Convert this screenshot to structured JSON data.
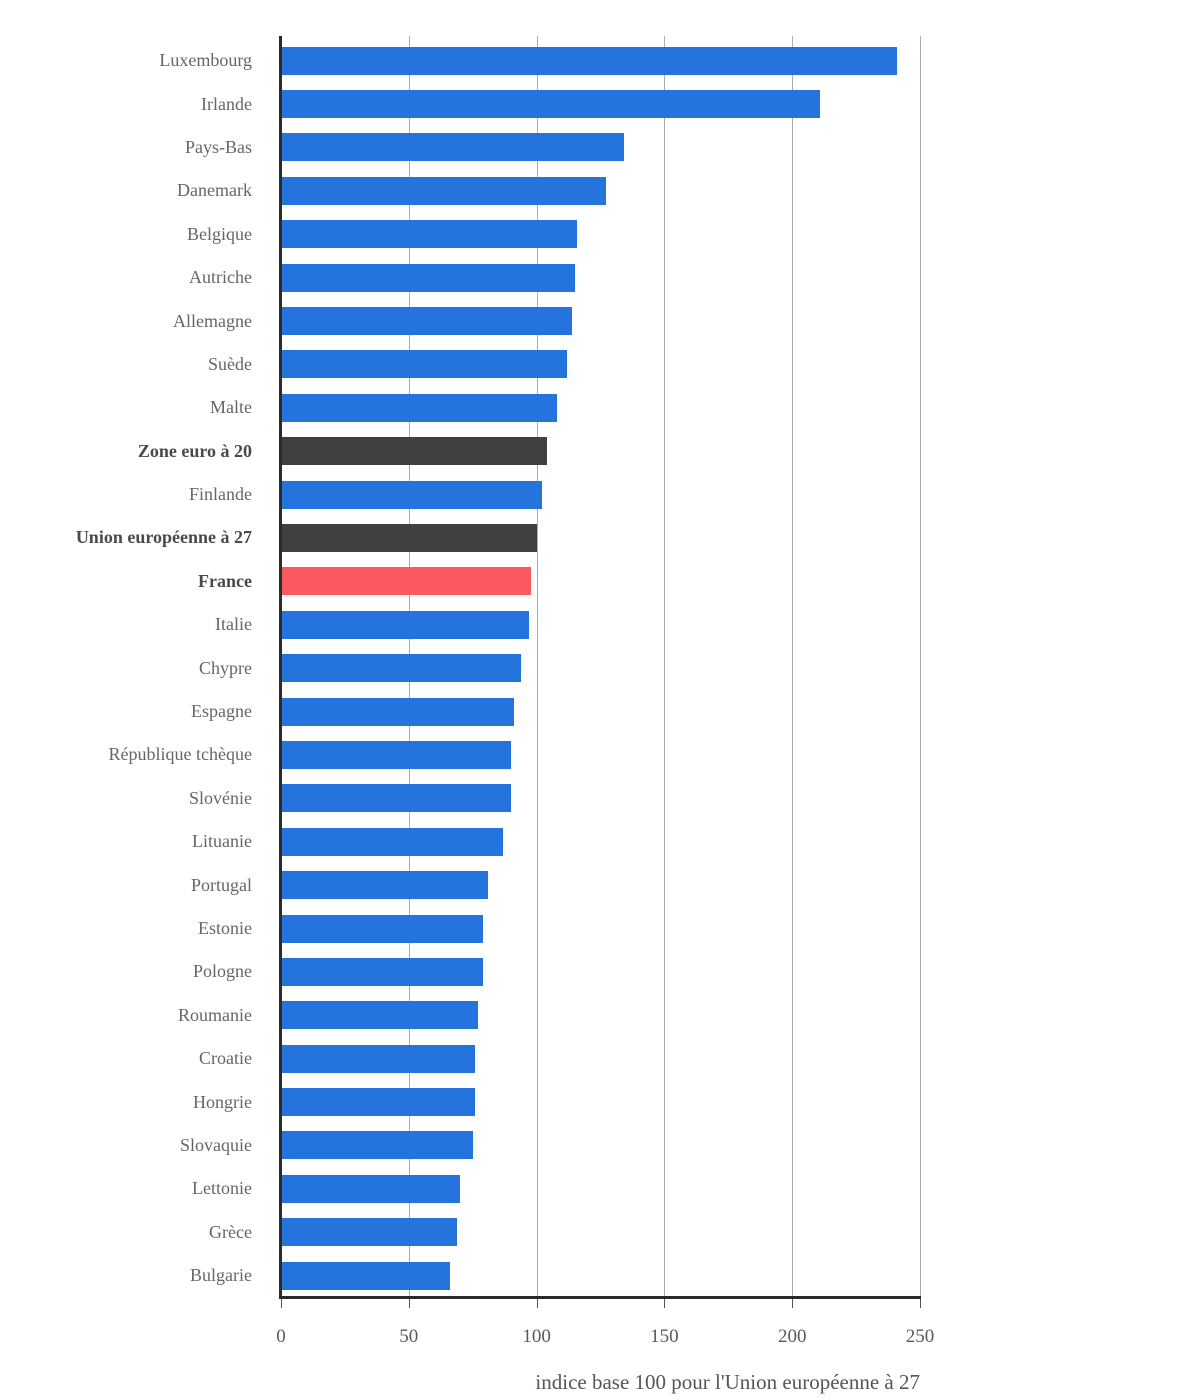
{
  "chart_data": {
    "type": "bar",
    "orientation": "horizontal",
    "title": "",
    "xlabel": "indice base 100 pour l'Union européenne à 27",
    "ylabel": "",
    "xlim": [
      0,
      250
    ],
    "x_ticks": [
      0,
      50,
      100,
      150,
      200,
      250
    ],
    "tick_labels": [
      "0",
      "50",
      "100",
      "150",
      "200",
      "250"
    ],
    "grid": true,
    "legend": "none",
    "colors": {
      "country": "#2574de",
      "aggregate": "#404040",
      "france": "#fa5a5f",
      "axis": "#2b2b2b",
      "gridline": "#ababab"
    },
    "bars": [
      {
        "label": "Luxembourg",
        "value": 241,
        "style": "country",
        "bold": false
      },
      {
        "label": "Irlande",
        "value": 211,
        "style": "country",
        "bold": false
      },
      {
        "label": "Pays-Bas",
        "value": 134,
        "style": "country",
        "bold": false
      },
      {
        "label": "Danemark",
        "value": 127,
        "style": "country",
        "bold": false
      },
      {
        "label": "Belgique",
        "value": 116,
        "style": "country",
        "bold": false
      },
      {
        "label": "Autriche",
        "value": 115,
        "style": "country",
        "bold": false
      },
      {
        "label": "Allemagne",
        "value": 114,
        "style": "country",
        "bold": false
      },
      {
        "label": "Suède",
        "value": 112,
        "style": "country",
        "bold": false
      },
      {
        "label": "Malte",
        "value": 108,
        "style": "country",
        "bold": false
      },
      {
        "label": "Zone euro à 20",
        "value": 104,
        "style": "aggregate",
        "bold": true
      },
      {
        "label": "Finlande",
        "value": 102,
        "style": "country",
        "bold": false
      },
      {
        "label": "Union européenne à 27",
        "value": 100,
        "style": "aggregate",
        "bold": true
      },
      {
        "label": "France",
        "value": 98,
        "style": "france",
        "bold": true
      },
      {
        "label": "Italie",
        "value": 97,
        "style": "country",
        "bold": false
      },
      {
        "label": "Chypre",
        "value": 94,
        "style": "country",
        "bold": false
      },
      {
        "label": "Espagne",
        "value": 91,
        "style": "country",
        "bold": false
      },
      {
        "label": "République tchèque",
        "value": 90,
        "style": "country",
        "bold": false
      },
      {
        "label": "Slovénie",
        "value": 90,
        "style": "country",
        "bold": false
      },
      {
        "label": "Lituanie",
        "value": 87,
        "style": "country",
        "bold": false
      },
      {
        "label": "Portugal",
        "value": 81,
        "style": "country",
        "bold": false
      },
      {
        "label": "Estonie",
        "value": 79,
        "style": "country",
        "bold": false
      },
      {
        "label": "Pologne",
        "value": 79,
        "style": "country",
        "bold": false
      },
      {
        "label": "Roumanie",
        "value": 77,
        "style": "country",
        "bold": false
      },
      {
        "label": "Croatie",
        "value": 76,
        "style": "country",
        "bold": false
      },
      {
        "label": "Hongrie",
        "value": 76,
        "style": "country",
        "bold": false
      },
      {
        "label": "Slovaquie",
        "value": 75,
        "style": "country",
        "bold": false
      },
      {
        "label": "Lettonie",
        "value": 70,
        "style": "country",
        "bold": false
      },
      {
        "label": "Grèce",
        "value": 69,
        "style": "country",
        "bold": false
      },
      {
        "label": "Bulgarie",
        "value": 66,
        "style": "country",
        "bold": false
      }
    ]
  }
}
